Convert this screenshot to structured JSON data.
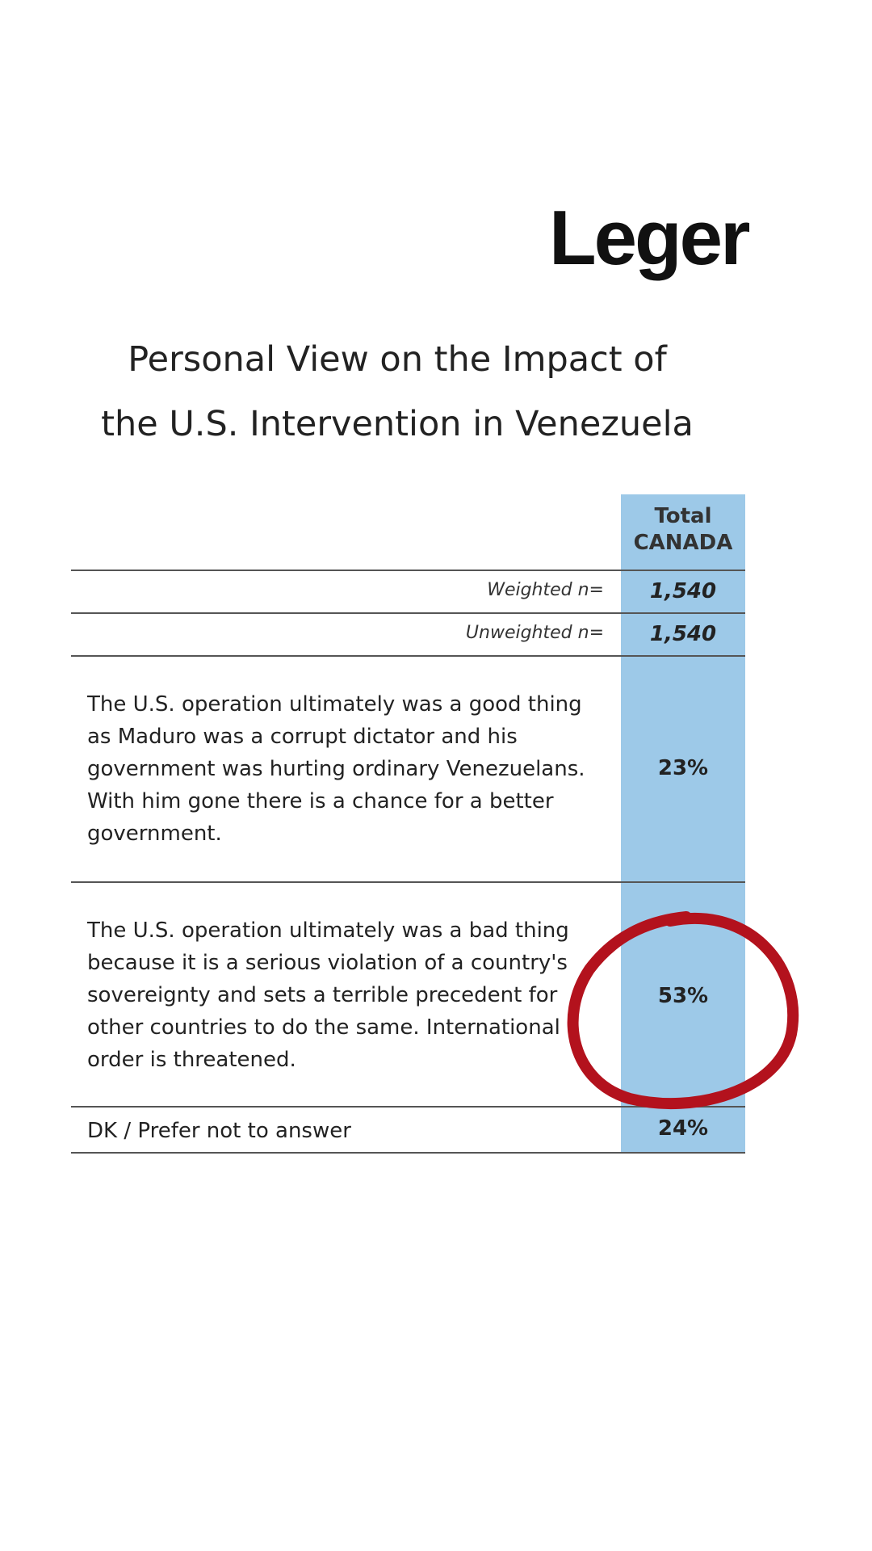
{
  "logo": "Leger",
  "title": [
    "Personal View on the Impact of",
    "the U.S. Intervention in Venezuela"
  ],
  "table": {
    "header": [
      "Total",
      "CANADA"
    ],
    "rows": [
      [
        "Weighted n=",
        "1,540"
      ],
      [
        "Unweighted n=",
        "1,540"
      ],
      [
        "The U.S. operation ultimately was a good thing as Maduro was a corrupt dictator and his government was hurting ordinary Venezuelans. With him gone there is a chance for a better government.",
        "23%"
      ],
      [
        "The U.S. operation ultimately was a bad thing because it is a serious violation of a country's sovereignty and sets a terrible precedent for other countries to do the same. International order is threatened.",
        "53%"
      ],
      [
        "DK / Prefer not to answer",
        "24%"
      ]
    ]
  }
}
